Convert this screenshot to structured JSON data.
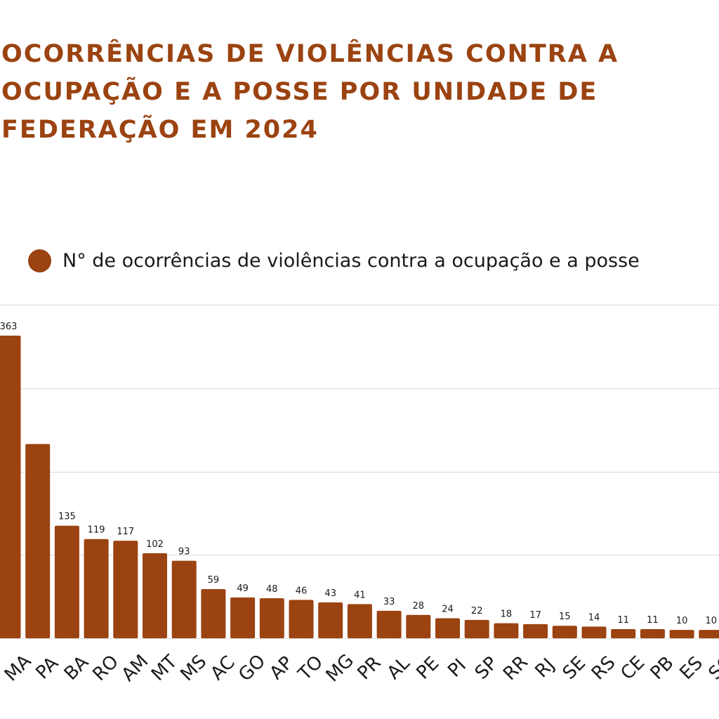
{
  "title_lines": [
    "OCORRÊNCIAS DE VIOLÊNCIAS CONTRA A",
    "OCUPAÇÃO E A POSSE POR UNIDADE DE",
    "FEDERAÇÃO EM 2024"
  ],
  "colors": {
    "bar": "#9b4311",
    "title": "#9b4311",
    "grid": "#d9d9d9",
    "text": "#1a1a1a"
  },
  "legend": {
    "label": "N° de ocorrências de violências contra a ocupação e a posse"
  },
  "chart_data": {
    "type": "bar",
    "categories": [
      "MA",
      "PA",
      "BA",
      "RO",
      "AM",
      "MT",
      "MS",
      "AC",
      "GO",
      "AP",
      "TO",
      "MG",
      "PR",
      "AL",
      "PE",
      "PI",
      "SP",
      "RR",
      "RJ",
      "SE",
      "RS",
      "CE",
      "PB",
      "ES",
      "SC"
    ],
    "series": [
      {
        "name": "N° de ocorrências de violências contra a ocupação e a posse",
        "values": [
          363,
          233,
          135,
          119,
          117,
          102,
          93,
          59,
          49,
          48,
          46,
          43,
          41,
          33,
          28,
          24,
          22,
          18,
          17,
          15,
          14,
          11,
          11,
          10,
          10
        ],
        "data_labels": [
          "363",
          "",
          "135",
          "119",
          "117",
          "102",
          "93",
          "59",
          "49",
          "48",
          "46",
          "43",
          "41",
          "33",
          "28",
          "24",
          "22",
          "18",
          "17",
          "15",
          "14",
          "11",
          "11",
          "10",
          "10"
        ]
      }
    ],
    "ylim": [
      0,
      400
    ],
    "gridlines": [
      100,
      200,
      300,
      400
    ],
    "grid": true,
    "legend_position": "top"
  }
}
